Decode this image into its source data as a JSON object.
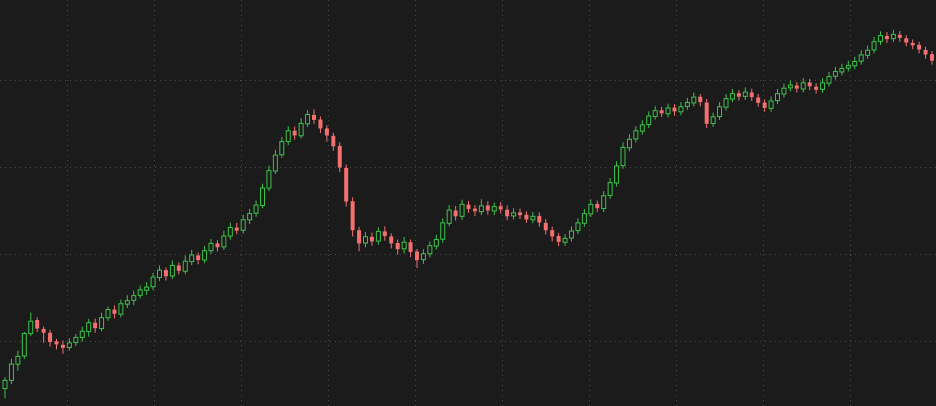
{
  "colors": {
    "background": "#1b1b1b",
    "grid": "#4a4a4a",
    "up": "#3cc24a",
    "down": "#f2706f"
  },
  "chart_data": {
    "type": "candlestick",
    "title": "",
    "xlabel": "",
    "ylabel": "",
    "grid": true,
    "grid_style": "dotted",
    "ylim": [
      0,
      100
    ],
    "x_gridlines": 10,
    "y_gridlines": 4,
    "candles": [
      [
        4.0,
        6.1,
        1.5,
        6.9
      ],
      [
        6.1,
        10.3,
        5.2,
        11.7
      ],
      [
        10.3,
        12.3,
        8.6,
        13.8
      ],
      [
        12.4,
        18.2,
        11.6,
        18.6
      ],
      [
        18.2,
        21.4,
        17.6,
        23.6
      ],
      [
        21.7,
        19.5,
        18.6,
        22.4
      ],
      [
        19.4,
        18.4,
        15.8,
        20.0
      ],
      [
        18.4,
        16.0,
        14.8,
        19.2
      ],
      [
        16.2,
        15.4,
        14.1,
        16.8
      ],
      [
        15.3,
        14.5,
        13.0,
        16.4
      ],
      [
        14.6,
        15.8,
        13.8,
        17.0
      ],
      [
        15.9,
        17.2,
        14.9,
        18.1
      ],
      [
        17.2,
        18.8,
        16.1,
        20.0
      ],
      [
        18.7,
        21.0,
        17.4,
        22.0
      ],
      [
        21.0,
        19.6,
        18.4,
        22.1
      ],
      [
        19.5,
        22.3,
        18.8,
        23.6
      ],
      [
        22.3,
        24.4,
        21.5,
        25.2
      ],
      [
        24.4,
        23.3,
        22.1,
        25.5
      ],
      [
        23.2,
        25.9,
        22.4,
        27.0
      ],
      [
        25.8,
        26.7,
        24.8,
        28.1
      ],
      [
        26.8,
        28.0,
        25.5,
        29.3
      ],
      [
        28.1,
        29.5,
        27.3,
        30.6
      ],
      [
        29.4,
        30.2,
        28.2,
        31.5
      ],
      [
        30.3,
        32.8,
        29.4,
        33.9
      ],
      [
        32.7,
        34.6,
        31.8,
        35.8
      ],
      [
        34.6,
        33.0,
        31.9,
        35.3
      ],
      [
        33.1,
        35.8,
        32.3,
        37.1
      ],
      [
        35.8,
        34.4,
        33.5,
        36.6
      ],
      [
        34.3,
        36.9,
        33.5,
        38.4
      ],
      [
        36.8,
        38.5,
        35.9,
        39.8
      ],
      [
        38.4,
        37.2,
        36.1,
        39.1
      ],
      [
        37.2,
        39.6,
        36.4,
        40.9
      ],
      [
        39.6,
        41.5,
        38.8,
        42.6
      ],
      [
        41.5,
        40.5,
        39.4,
        42.3
      ],
      [
        40.6,
        43.4,
        39.8,
        44.8
      ],
      [
        43.4,
        45.6,
        42.5,
        46.9
      ],
      [
        45.6,
        44.8,
        43.9,
        46.8
      ],
      [
        44.9,
        47.6,
        44.0,
        48.9
      ],
      [
        47.6,
        49.2,
        46.5,
        50.4
      ],
      [
        49.3,
        51.4,
        48.4,
        52.6
      ],
      [
        51.3,
        55.8,
        50.6,
        56.9
      ],
      [
        55.8,
        60.3,
        55.0,
        61.6
      ],
      [
        60.2,
        64.3,
        59.4,
        65.7
      ],
      [
        64.4,
        67.8,
        63.6,
        69.0
      ],
      [
        67.8,
        70.6,
        66.9,
        71.8
      ],
      [
        70.6,
        69.4,
        68.3,
        71.7
      ],
      [
        69.3,
        72.5,
        68.6,
        73.9
      ],
      [
        72.4,
        74.8,
        71.6,
        75.9
      ],
      [
        74.7,
        73.4,
        72.4,
        76.1
      ],
      [
        73.5,
        71.2,
        70.0,
        74.3
      ],
      [
        71.2,
        69.4,
        67.8,
        72.0
      ],
      [
        69.3,
        66.6,
        65.4,
        70.1
      ],
      [
        66.7,
        61.1,
        59.9,
        67.6
      ],
      [
        61.0,
        52.3,
        51.0,
        61.9
      ],
      [
        52.4,
        44.9,
        43.3,
        53.4
      ],
      [
        44.9,
        41.5,
        39.5,
        45.8
      ],
      [
        41.6,
        43.2,
        40.5,
        44.4
      ],
      [
        43.2,
        42.0,
        40.9,
        44.3
      ],
      [
        42.1,
        44.6,
        41.2,
        45.7
      ],
      [
        44.6,
        43.4,
        42.2,
        45.9
      ],
      [
        43.3,
        41.5,
        40.2,
        44.1
      ],
      [
        41.6,
        40.0,
        38.6,
        42.5
      ],
      [
        40.1,
        41.8,
        38.9,
        43.2
      ],
      [
        41.8,
        39.3,
        37.9,
        42.5
      ],
      [
        39.4,
        37.2,
        35.1,
        40.1
      ],
      [
        37.3,
        38.8,
        36.2,
        40.0
      ],
      [
        38.8,
        40.9,
        37.9,
        42.0
      ],
      [
        40.8,
        42.5,
        39.9,
        43.7
      ],
      [
        42.6,
        46.8,
        41.7,
        48.0
      ],
      [
        46.7,
        50.1,
        45.9,
        51.4
      ],
      [
        50.0,
        48.5,
        47.4,
        51.2
      ],
      [
        48.5,
        51.6,
        47.6,
        52.8
      ],
      [
        51.5,
        50.4,
        49.4,
        52.5
      ],
      [
        50.5,
        49.8,
        48.6,
        51.4
      ],
      [
        49.7,
        51.2,
        48.8,
        52.9
      ],
      [
        51.3,
        50.0,
        48.9,
        52.4
      ],
      [
        49.9,
        51.0,
        48.8,
        52.0
      ],
      [
        51.1,
        50.3,
        49.2,
        52.2
      ],
      [
        50.2,
        48.5,
        47.5,
        51.3
      ],
      [
        48.6,
        49.4,
        47.7,
        50.6
      ],
      [
        49.5,
        48.8,
        47.8,
        50.5
      ],
      [
        48.9,
        47.7,
        46.8,
        49.8
      ],
      [
        47.6,
        48.5,
        46.7,
        49.6
      ],
      [
        48.6,
        46.9,
        45.8,
        49.5
      ],
      [
        46.8,
        44.9,
        43.8,
        47.8
      ],
      [
        44.9,
        43.3,
        42.0,
        45.8
      ],
      [
        43.4,
        41.9,
        40.8,
        44.2
      ],
      [
        41.8,
        42.8,
        40.9,
        43.9
      ],
      [
        42.9,
        44.7,
        42.0,
        45.9
      ],
      [
        44.8,
        46.8,
        43.9,
        48.0
      ],
      [
        46.7,
        49.2,
        45.8,
        50.4
      ],
      [
        49.1,
        51.6,
        48.3,
        52.9
      ],
      [
        51.7,
        50.6,
        49.6,
        52.6
      ],
      [
        50.5,
        53.8,
        49.6,
        55.0
      ],
      [
        53.9,
        57.2,
        53.0,
        58.4
      ],
      [
        57.1,
        61.5,
        56.2,
        62.7
      ],
      [
        61.6,
        66.3,
        60.8,
        67.6
      ],
      [
        66.2,
        68.4,
        65.3,
        69.7
      ],
      [
        68.5,
        70.6,
        67.6,
        71.8
      ],
      [
        70.5,
        72.1,
        69.6,
        73.3
      ],
      [
        72.2,
        74.4,
        71.3,
        75.6
      ],
      [
        74.3,
        75.8,
        73.5,
        77.0
      ],
      [
        75.9,
        75.1,
        74.2,
        76.8
      ],
      [
        75.0,
        76.5,
        74.1,
        77.6
      ],
      [
        76.6,
        75.6,
        74.5,
        77.5
      ],
      [
        75.5,
        76.8,
        74.6,
        78.0
      ],
      [
        76.9,
        77.9,
        76.0,
        79.1
      ],
      [
        77.8,
        79.3,
        76.9,
        80.5
      ],
      [
        79.4,
        78.0,
        76.9,
        80.1
      ],
      [
        77.9,
        72.4,
        71.3,
        78.8
      ],
      [
        72.5,
        74.2,
        71.6,
        75.3
      ],
      [
        74.3,
        76.8,
        73.4,
        78.0
      ],
      [
        76.7,
        78.9,
        75.8,
        80.1
      ],
      [
        78.8,
        80.2,
        78.0,
        81.4
      ],
      [
        80.3,
        79.4,
        78.4,
        81.1
      ],
      [
        79.5,
        80.6,
        78.6,
        81.8
      ],
      [
        80.5,
        79.3,
        78.3,
        81.5
      ],
      [
        79.2,
        77.8,
        76.8,
        80.1
      ],
      [
        77.9,
        76.5,
        75.5,
        78.7
      ],
      [
        76.4,
        78.3,
        75.5,
        79.5
      ],
      [
        78.4,
        80.2,
        77.5,
        81.4
      ],
      [
        80.1,
        81.6,
        79.2,
        82.8
      ],
      [
        81.7,
        82.4,
        80.8,
        83.6
      ],
      [
        82.3,
        81.5,
        80.5,
        83.2
      ],
      [
        81.4,
        83.0,
        80.5,
        84.2
      ],
      [
        83.1,
        82.1,
        81.1,
        84.0
      ],
      [
        82.0,
        81.2,
        80.2,
        82.9
      ],
      [
        81.3,
        83.0,
        80.4,
        84.2
      ],
      [
        82.9,
        84.6,
        82.0,
        85.8
      ],
      [
        84.7,
        85.9,
        83.8,
        87.1
      ],
      [
        85.8,
        86.7,
        84.9,
        87.9
      ],
      [
        86.8,
        87.5,
        85.9,
        88.7
      ],
      [
        87.4,
        88.5,
        86.5,
        89.7
      ],
      [
        88.6,
        90.2,
        87.7,
        91.4
      ],
      [
        90.1,
        91.4,
        89.2,
        92.6
      ],
      [
        91.5,
        93.6,
        90.6,
        94.8
      ],
      [
        93.7,
        95.2,
        92.8,
        96.3
      ],
      [
        95.1,
        94.3,
        93.3,
        96.1
      ],
      [
        94.4,
        95.5,
        93.5,
        96.7
      ],
      [
        95.4,
        94.6,
        93.6,
        96.4
      ],
      [
        94.5,
        93.4,
        92.4,
        95.3
      ],
      [
        93.3,
        92.7,
        91.7,
        94.2
      ],
      [
        92.8,
        91.6,
        90.6,
        93.6
      ],
      [
        91.5,
        90.3,
        89.2,
        92.3
      ],
      [
        90.4,
        88.7,
        87.7,
        91.2
      ]
    ]
  }
}
